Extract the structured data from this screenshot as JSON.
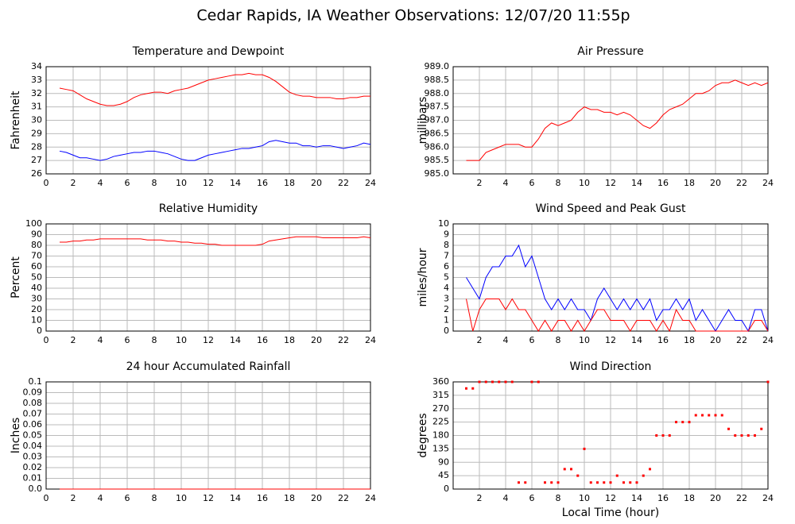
{
  "title": "Cedar Rapids, IA Weather Observations: 12/07/20 11:55p",
  "chart_data": [
    {
      "type": "line",
      "title": "Temperature and Dewpoint",
      "ylabel": "Fahrenheit",
      "x": [
        1,
        1.5,
        2,
        2.5,
        3,
        3.5,
        4,
        4.5,
        5,
        5.5,
        6,
        6.5,
        7,
        7.5,
        8,
        8.5,
        9,
        9.5,
        10,
        10.5,
        11,
        11.5,
        12,
        12.5,
        13,
        13.5,
        14,
        14.5,
        15,
        15.5,
        16,
        16.5,
        17,
        17.5,
        18,
        18.5,
        19,
        19.5,
        20,
        20.5,
        21,
        21.5,
        22,
        22.5,
        23,
        23.5,
        24
      ],
      "series": [
        {
          "color": "#ff0000",
          "values": [
            32.4,
            32.3,
            32.2,
            31.9,
            31.6,
            31.4,
            31.2,
            31.1,
            31.1,
            31.2,
            31.4,
            31.7,
            31.9,
            32.0,
            32.1,
            32.1,
            32.0,
            32.2,
            32.3,
            32.4,
            32.6,
            32.8,
            33.0,
            33.1,
            33.2,
            33.3,
            33.4,
            33.4,
            33.5,
            33.4,
            33.4,
            33.2,
            32.9,
            32.5,
            32.1,
            31.9,
            31.8,
            31.8,
            31.7,
            31.7,
            31.7,
            31.6,
            31.6,
            31.7,
            31.7,
            31.8,
            31.8
          ]
        },
        {
          "color": "#0000ff",
          "values": [
            27.7,
            27.6,
            27.4,
            27.2,
            27.2,
            27.1,
            27.0,
            27.1,
            27.3,
            27.4,
            27.5,
            27.6,
            27.6,
            27.7,
            27.7,
            27.6,
            27.5,
            27.3,
            27.1,
            27.0,
            27.0,
            27.2,
            27.4,
            27.5,
            27.6,
            27.7,
            27.8,
            27.9,
            27.9,
            28.0,
            28.1,
            28.4,
            28.5,
            28.4,
            28.3,
            28.3,
            28.1,
            28.1,
            28.0,
            28.1,
            28.1,
            28.0,
            27.9,
            28.0,
            28.1,
            28.3,
            28.2
          ]
        }
      ],
      "xlim": [
        0,
        24
      ],
      "xticks": [
        0,
        2,
        4,
        6,
        8,
        10,
        12,
        14,
        16,
        18,
        20,
        22,
        24
      ],
      "ylim": [
        26,
        34
      ],
      "yticks": [
        26,
        27,
        28,
        29,
        30,
        31,
        32,
        33,
        34
      ],
      "grid": true
    },
    {
      "type": "line",
      "title": "Air Pressure",
      "ylabel": "millibars",
      "x": [
        1,
        1.5,
        2,
        2.5,
        3,
        3.5,
        4,
        4.5,
        5,
        5.5,
        6,
        6.5,
        7,
        7.5,
        8,
        8.5,
        9,
        9.5,
        10,
        10.5,
        11,
        11.5,
        12,
        12.5,
        13,
        13.5,
        14,
        14.5,
        15,
        15.5,
        16,
        16.5,
        17,
        17.5,
        18,
        18.5,
        19,
        19.5,
        20,
        20.5,
        21,
        21.5,
        22,
        22.5,
        23,
        23.5,
        24
      ],
      "series": [
        {
          "color": "#ff0000",
          "values": [
            985.5,
            985.5,
            985.5,
            985.8,
            985.9,
            986.0,
            986.1,
            986.1,
            986.1,
            986.0,
            986.0,
            986.3,
            986.7,
            986.9,
            986.8,
            986.9,
            987.0,
            987.3,
            987.5,
            987.4,
            987.4,
            987.3,
            987.3,
            987.2,
            987.3,
            987.2,
            987.0,
            986.8,
            986.7,
            986.9,
            987.2,
            987.4,
            987.5,
            987.6,
            987.8,
            988.0,
            988.0,
            988.1,
            988.3,
            988.4,
            988.4,
            988.5,
            988.4,
            988.3,
            988.4,
            988.3,
            988.4
          ]
        }
      ],
      "xlim": [
        0,
        24
      ],
      "xticks": [
        2,
        4,
        6,
        8,
        10,
        12,
        14,
        16,
        18,
        20,
        22,
        24
      ],
      "ylim": [
        985,
        989
      ],
      "yticks": [
        {
          "value": 985,
          "label": "985.0"
        },
        985.5,
        {
          "value": 986,
          "label": "986.0"
        },
        986.5,
        {
          "value": 987,
          "label": "987.0"
        },
        987.5,
        {
          "value": 988,
          "label": "988.0"
        },
        988.5,
        {
          "value": 989,
          "label": "989.0"
        }
      ],
      "grid": true
    },
    {
      "type": "line",
      "title": "Relative Humidity",
      "ylabel": "Percent",
      "x": [
        1,
        1.5,
        2,
        2.5,
        3,
        3.5,
        4,
        4.5,
        5,
        5.5,
        6,
        6.5,
        7,
        7.5,
        8,
        8.5,
        9,
        9.5,
        10,
        10.5,
        11,
        11.5,
        12,
        12.5,
        13,
        13.5,
        14,
        14.5,
        15,
        15.5,
        16,
        16.5,
        17,
        17.5,
        18,
        18.5,
        19,
        19.5,
        20,
        20.5,
        21,
        21.5,
        22,
        22.5,
        23,
        23.5,
        24
      ],
      "series": [
        {
          "color": "#ff0000",
          "values": [
            83,
            83,
            84,
            84,
            85,
            85,
            86,
            86,
            86,
            86,
            86,
            86,
            86,
            85,
            85,
            85,
            84,
            84,
            83,
            83,
            82,
            82,
            81,
            81,
            80,
            80,
            80,
            80,
            80,
            80,
            81,
            84,
            85,
            86,
            87,
            88,
            88,
            88,
            88,
            87,
            87,
            87,
            87,
            87,
            87,
            88,
            87
          ]
        }
      ],
      "xlim": [
        0,
        24
      ],
      "xticks": [
        0,
        2,
        4,
        6,
        8,
        10,
        12,
        14,
        16,
        18,
        20,
        22,
        24
      ],
      "ylim": [
        0,
        100
      ],
      "yticks": [
        0,
        10,
        20,
        30,
        40,
        50,
        60,
        70,
        80,
        90,
        100
      ],
      "grid": true
    },
    {
      "type": "line",
      "title": "Wind Speed and Peak Gust",
      "ylabel": "miles/hour",
      "x": [
        1,
        1.5,
        2,
        2.5,
        3,
        3.5,
        4,
        4.5,
        5,
        5.5,
        6,
        6.5,
        7,
        7.5,
        8,
        8.5,
        9,
        9.5,
        10,
        10.5,
        11,
        11.5,
        12,
        12.5,
        13,
        13.5,
        14,
        14.5,
        15,
        15.5,
        16,
        16.5,
        17,
        17.5,
        18,
        18.5,
        19,
        19.5,
        20,
        20.5,
        21,
        21.5,
        22,
        22.5,
        23,
        23.5,
        24
      ],
      "series": [
        {
          "color": "#0000ff",
          "values": [
            5,
            4,
            3,
            5,
            6,
            6,
            7,
            7,
            8,
            6,
            7,
            5,
            3,
            2,
            3,
            2,
            3,
            2,
            2,
            1,
            3,
            4,
            3,
            2,
            3,
            2,
            3,
            2,
            3,
            1,
            2,
            2,
            3,
            2,
            3,
            1,
            2,
            1,
            0,
            1,
            2,
            1,
            1,
            0,
            2,
            2,
            0
          ]
        },
        {
          "color": "#ff0000",
          "values": [
            3,
            0,
            2,
            3,
            3,
            3,
            2,
            3,
            2,
            2,
            1,
            0,
            1,
            0,
            1,
            1,
            0,
            1,
            0,
            1,
            2,
            2,
            1,
            1,
            1,
            0,
            1,
            1,
            1,
            0,
            1,
            0,
            2,
            1,
            1,
            0,
            0,
            0,
            0,
            0,
            0,
            0,
            0,
            0,
            1,
            1,
            0
          ]
        }
      ],
      "xlim": [
        0,
        24
      ],
      "xticks": [
        2,
        4,
        6,
        8,
        10,
        12,
        14,
        16,
        18,
        20,
        22,
        24
      ],
      "ylim": [
        0,
        10
      ],
      "yticks": [
        0,
        1,
        2,
        3,
        4,
        5,
        6,
        7,
        8,
        9,
        10
      ],
      "grid": true
    },
    {
      "type": "line",
      "title": "24 hour Accumulated Rainfall",
      "ylabel": "Inches",
      "x": [
        1,
        24
      ],
      "series": [
        {
          "color": "#ff0000",
          "values": [
            0,
            0
          ]
        }
      ],
      "xlim": [
        0,
        24
      ],
      "xticks": [
        0,
        2,
        4,
        6,
        8,
        10,
        12,
        14,
        16,
        18,
        20,
        22,
        24
      ],
      "ylim": [
        0,
        0.1
      ],
      "yticks": [
        {
          "value": 0,
          "label": "0.0"
        },
        0.01,
        0.02,
        0.03,
        0.04,
        0.05,
        0.06,
        0.07,
        0.08,
        0.09,
        0.1
      ],
      "grid": true
    },
    {
      "type": "scatter",
      "title": "Wind Direction",
      "ylabel": "degrees",
      "xlabel": "Local Time (hour)",
      "x": [
        1,
        1.5,
        2,
        2.5,
        3,
        3.5,
        4,
        4.5,
        5,
        5.5,
        6,
        6.5,
        7,
        7.5,
        8,
        8.5,
        9,
        9.5,
        10,
        10.5,
        11,
        11.5,
        12,
        12.5,
        13,
        13.5,
        14,
        14.5,
        15,
        15.5,
        16,
        16.5,
        17,
        17.5,
        18,
        18.5,
        19,
        19.5,
        20,
        20.5,
        21,
        21.5,
        22,
        22.5,
        23,
        23.5,
        24
      ],
      "series": [
        {
          "color": "#ff0000",
          "values": [
            338,
            338,
            360,
            360,
            360,
            360,
            360,
            360,
            22,
            22,
            360,
            360,
            22,
            22,
            22,
            67,
            67,
            45,
            135,
            22,
            22,
            22,
            22,
            45,
            22,
            22,
            22,
            45,
            67,
            180,
            180,
            180,
            225,
            225,
            225,
            248,
            248,
            248,
            248,
            248,
            202,
            180,
            180,
            180,
            180,
            202,
            360
          ]
        }
      ],
      "xlim": [
        0,
        24
      ],
      "xticks": [
        2,
        4,
        6,
        8,
        10,
        12,
        14,
        16,
        18,
        20,
        22,
        24
      ],
      "ylim": [
        0,
        360
      ],
      "yticks": [
        0,
        45,
        90,
        135,
        180,
        225,
        270,
        315,
        360
      ],
      "grid": true
    }
  ]
}
